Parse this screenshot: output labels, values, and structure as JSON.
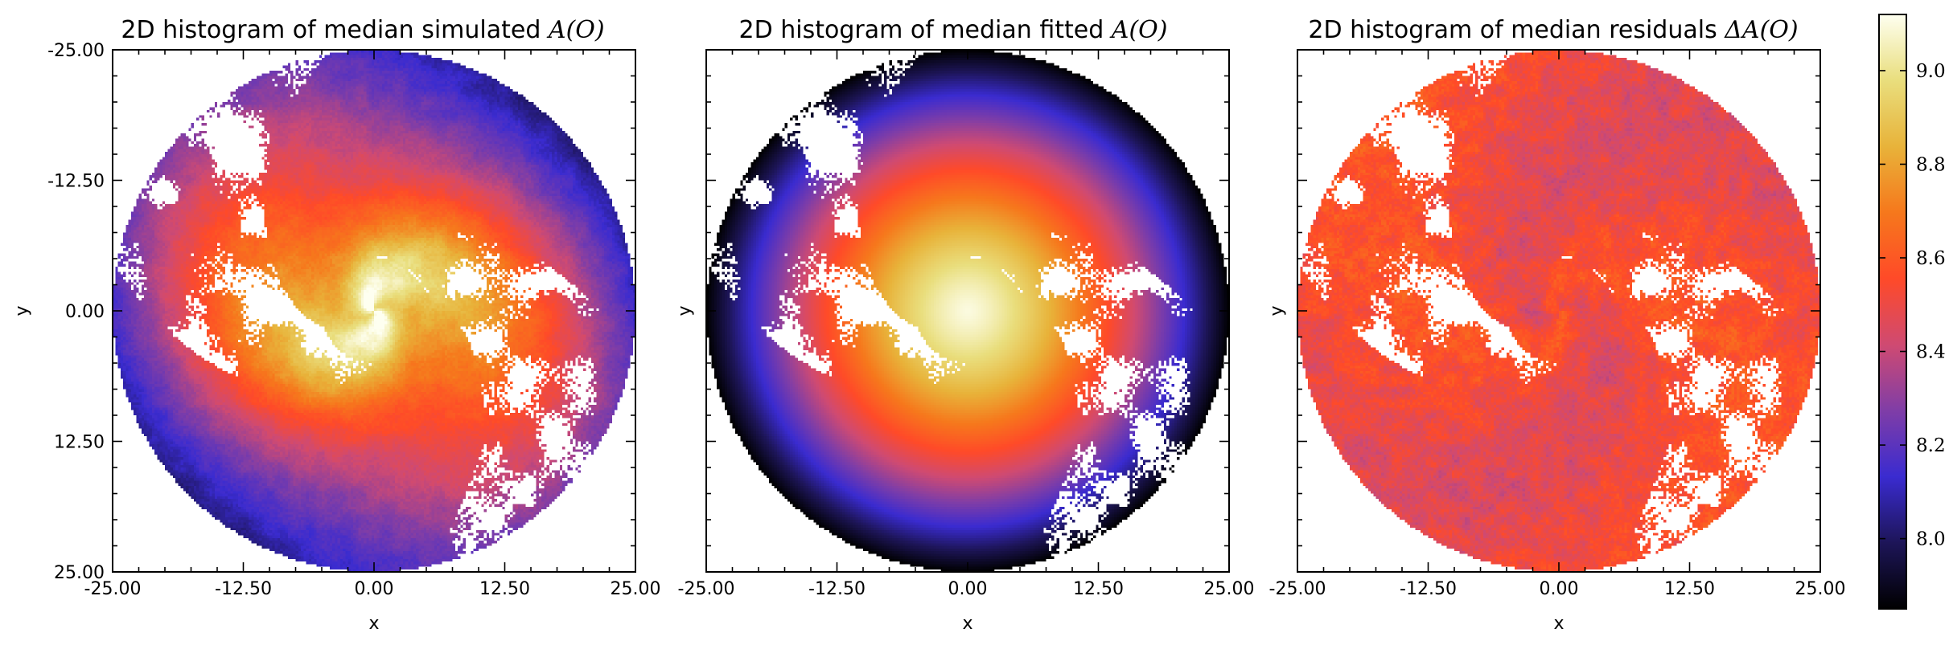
{
  "colors": {
    "colormap": "CMRmap-like",
    "colormap_stops": [
      "#000000",
      "#1d1558",
      "#3a2bd0",
      "#7f3da7",
      "#cf4a72",
      "#ff4a28",
      "#f6781c",
      "#e8b33a",
      "#e9de7d",
      "#fefff0"
    ],
    "blank_bins": "#ffffff"
  },
  "chart_data": [
    {
      "type": "heatmap",
      "title_text": "2D histogram of median simulated ",
      "title_math": "A(O)",
      "xlabel": "x",
      "ylabel": "y",
      "xlim": [
        -25,
        25
      ],
      "ylim": [
        25,
        -25
      ],
      "y_inverted": true,
      "xticks": [
        "-25.00",
        "-12.50",
        "0.00",
        "12.50",
        "25.00"
      ],
      "yticks": [
        "-25.00",
        "-12.50",
        "0.00",
        "12.50",
        "25.00"
      ],
      "disk_radius": 25,
      "center_value": 9.1,
      "edge_value": 8.15,
      "spiral_contrast": "medium",
      "blank_regions": "white clumps along spiral arms"
    },
    {
      "type": "heatmap",
      "title_text": "2D histogram of median fitted ",
      "title_math": "A(O)",
      "xlabel": "x",
      "ylabel": "y",
      "xlim": [
        -25,
        25
      ],
      "ylim": [
        25,
        -25
      ],
      "y_inverted": true,
      "xticks": [
        "-25.00",
        "-12.50",
        "0.00",
        "12.50",
        "25.00"
      ],
      "yticks": [],
      "disk_radius": 25,
      "center_value": 9.1,
      "edge_value": 7.85,
      "spiral_contrast": "none (smooth radial gradient)",
      "blank_regions": "white clumps along spiral arms"
    },
    {
      "type": "heatmap",
      "title_text": "2D histogram of median residuals ",
      "title_math": "ΔA(O)",
      "xlabel": "x",
      "ylabel": "y",
      "xlim": [
        -25,
        25
      ],
      "ylim": [
        25,
        -25
      ],
      "y_inverted": true,
      "xticks": [
        "-25.00",
        "-12.50",
        "0.00",
        "12.50",
        "25.00"
      ],
      "yticks": [],
      "disk_radius": 25,
      "center_value": 8.55,
      "edge_value": 8.5,
      "spiral_contrast": "weak noisy texture",
      "blank_regions": "white clumps along spiral arms"
    }
  ],
  "colorbar": {
    "min": 7.85,
    "max": 9.12,
    "ticks": [
      8.0,
      8.2,
      8.4,
      8.6,
      8.8,
      9.0
    ],
    "tick_labels": [
      "8.0",
      "8.2",
      "8.4",
      "8.6",
      "8.8",
      "9.0"
    ],
    "orientation": "vertical",
    "location": "right"
  }
}
